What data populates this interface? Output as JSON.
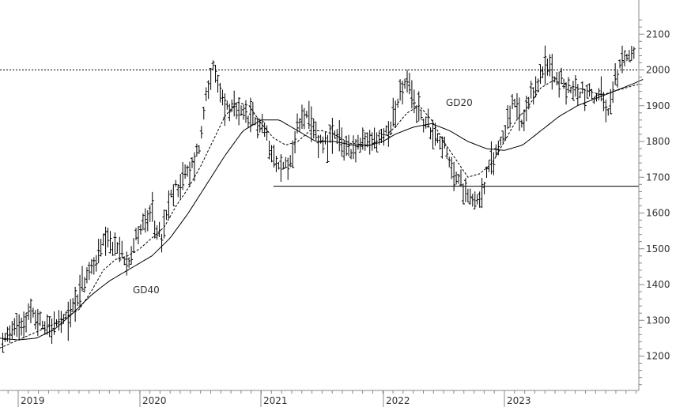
{
  "chart_data": {
    "type": "line",
    "title": "",
    "xlabel": "",
    "ylabel": "",
    "x_tick_labels": [
      "2019",
      "2020",
      "2021",
      "2022",
      "2023"
    ],
    "y_ticks": [
      1200,
      1300,
      1400,
      1500,
      1600,
      1700,
      1800,
      1900,
      2000,
      2100
    ],
    "ylim": [
      1100,
      2150
    ],
    "grid": false,
    "y_axis_position": "right",
    "colors": {
      "bars": "#000000",
      "ma_lines": "#000000",
      "axis": "#888888",
      "background": "#ffffff"
    },
    "series": [
      {
        "name": "GD20",
        "style": "dashed"
      },
      {
        "name": "GD40",
        "style": "solid"
      }
    ],
    "reference_lines": [
      {
        "value": 2000,
        "style": "dotted",
        "from_year": 2018.7,
        "to_year": 2024.15
      },
      {
        "value": 1675,
        "style": "solid",
        "from_year": 2021.1,
        "to_year": 2024.15
      }
    ],
    "anchors": {
      "price": [
        [
          2018.7,
          1215
        ],
        [
          2018.85,
          1240
        ],
        [
          2019.0,
          1290
        ],
        [
          2019.1,
          1320
        ],
        [
          2019.2,
          1290
        ],
        [
          2019.3,
          1285
        ],
        [
          2019.4,
          1300
        ],
        [
          2019.5,
          1380
        ],
        [
          2019.6,
          1440
        ],
        [
          2019.7,
          1510
        ],
        [
          2019.8,
          1505
        ],
        [
          2019.9,
          1470
        ],
        [
          2020.0,
          1560
        ],
        [
          2020.1,
          1590
        ],
        [
          2020.18,
          1520
        ],
        [
          2020.25,
          1640
        ],
        [
          2020.33,
          1690
        ],
        [
          2020.42,
          1720
        ],
        [
          2020.5,
          1800
        ],
        [
          2020.55,
          1950
        ],
        [
          2020.6,
          2000
        ],
        [
          2020.65,
          1950
        ],
        [
          2020.7,
          1900
        ],
        [
          2020.8,
          1880
        ],
        [
          2020.9,
          1860
        ],
        [
          2021.0,
          1850
        ],
        [
          2021.08,
          1790
        ],
        [
          2021.15,
          1720
        ],
        [
          2021.2,
          1735
        ],
        [
          2021.25,
          1750
        ],
        [
          2021.3,
          1840
        ],
        [
          2021.35,
          1880
        ],
        [
          2021.42,
          1830
        ],
        [
          2021.5,
          1800
        ],
        [
          2021.6,
          1810
        ],
        [
          2021.67,
          1790
        ],
        [
          2021.75,
          1780
        ],
        [
          2021.83,
          1790
        ],
        [
          2021.9,
          1800
        ],
        [
          2022.0,
          1810
        ],
        [
          2022.1,
          1880
        ],
        [
          2022.15,
          1940
        ],
        [
          2022.2,
          1960
        ],
        [
          2022.27,
          1900
        ],
        [
          2022.35,
          1850
        ],
        [
          2022.42,
          1830
        ],
        [
          2022.5,
          1790
        ],
        [
          2022.55,
          1730
        ],
        [
          2022.62,
          1690
        ],
        [
          2022.7,
          1660
        ],
        [
          2022.75,
          1640
        ],
        [
          2022.8,
          1640
        ],
        [
          2022.85,
          1700
        ],
        [
          2022.92,
          1760
        ],
        [
          2023.0,
          1830
        ],
        [
          2023.08,
          1910
        ],
        [
          2023.15,
          1840
        ],
        [
          2023.22,
          1920
        ],
        [
          2023.3,
          1990
        ],
        [
          2023.37,
          2010
        ],
        [
          2023.45,
          1970
        ],
        [
          2023.5,
          1950
        ],
        [
          2023.6,
          1940
        ],
        [
          2023.7,
          1940
        ],
        [
          2023.75,
          1920
        ],
        [
          2023.8,
          1930
        ],
        [
          2023.85,
          1870
        ],
        [
          2023.92,
          1980
        ],
        [
          2024.0,
          2040
        ],
        [
          2024.05,
          2060
        ],
        [
          2024.1,
          2040
        ],
        [
          2024.15,
          2030
        ]
      ],
      "gd20": [
        [
          2018.7,
          1200
        ],
        [
          2018.9,
          1230
        ],
        [
          2019.1,
          1260
        ],
        [
          2019.3,
          1290
        ],
        [
          2019.5,
          1330
        ],
        [
          2019.6,
          1380
        ],
        [
          2019.7,
          1440
        ],
        [
          2019.8,
          1470
        ],
        [
          2019.9,
          1480
        ],
        [
          2020.0,
          1500
        ],
        [
          2020.2,
          1560
        ],
        [
          2020.3,
          1620
        ],
        [
          2020.4,
          1670
        ],
        [
          2020.5,
          1730
        ],
        [
          2020.6,
          1800
        ],
        [
          2020.7,
          1870
        ],
        [
          2020.8,
          1910
        ],
        [
          2020.9,
          1900
        ],
        [
          2021.0,
          1850
        ],
        [
          2021.1,
          1810
        ],
        [
          2021.2,
          1790
        ],
        [
          2021.3,
          1800
        ],
        [
          2021.4,
          1830
        ],
        [
          2021.5,
          1830
        ],
        [
          2021.6,
          1820
        ],
        [
          2021.7,
          1800
        ],
        [
          2021.8,
          1785
        ],
        [
          2021.9,
          1790
        ],
        [
          2022.0,
          1810
        ],
        [
          2022.1,
          1840
        ],
        [
          2022.2,
          1880
        ],
        [
          2022.3,
          1900
        ],
        [
          2022.4,
          1860
        ],
        [
          2022.5,
          1800
        ],
        [
          2022.6,
          1750
        ],
        [
          2022.7,
          1700
        ],
        [
          2022.8,
          1710
        ],
        [
          2022.9,
          1740
        ],
        [
          2023.0,
          1800
        ],
        [
          2023.1,
          1860
        ],
        [
          2023.2,
          1900
        ],
        [
          2023.3,
          1950
        ],
        [
          2023.4,
          1970
        ],
        [
          2023.5,
          1960
        ],
        [
          2023.6,
          1950
        ],
        [
          2023.7,
          1940
        ],
        [
          2023.8,
          1930
        ],
        [
          2023.9,
          1940
        ],
        [
          2024.0,
          1950
        ],
        [
          2024.1,
          1960
        ]
      ],
      "gd40": [
        [
          2018.7,
          1262
        ],
        [
          2018.85,
          1250
        ],
        [
          2019.0,
          1245
        ],
        [
          2019.15,
          1250
        ],
        [
          2019.3,
          1275
        ],
        [
          2019.45,
          1320
        ],
        [
          2019.6,
          1370
        ],
        [
          2019.75,
          1410
        ],
        [
          2019.9,
          1440
        ],
        [
          2020.1,
          1480
        ],
        [
          2020.25,
          1530
        ],
        [
          2020.4,
          1600
        ],
        [
          2020.55,
          1680
        ],
        [
          2020.7,
          1760
        ],
        [
          2020.85,
          1830
        ],
        [
          2021.0,
          1860
        ],
        [
          2021.15,
          1860
        ],
        [
          2021.3,
          1830
        ],
        [
          2021.45,
          1800
        ],
        [
          2021.6,
          1800
        ],
        [
          2021.75,
          1790
        ],
        [
          2021.9,
          1790
        ],
        [
          2022.0,
          1800
        ],
        [
          2022.1,
          1820
        ],
        [
          2022.25,
          1840
        ],
        [
          2022.4,
          1850
        ],
        [
          2022.55,
          1830
        ],
        [
          2022.7,
          1800
        ],
        [
          2022.85,
          1780
        ],
        [
          2023.0,
          1775
        ],
        [
          2023.15,
          1790
        ],
        [
          2023.3,
          1830
        ],
        [
          2023.45,
          1870
        ],
        [
          2023.6,
          1900
        ],
        [
          2023.75,
          1920
        ],
        [
          2023.9,
          1940
        ],
        [
          2024.05,
          1960
        ],
        [
          2024.15,
          1975
        ]
      ]
    }
  }
}
